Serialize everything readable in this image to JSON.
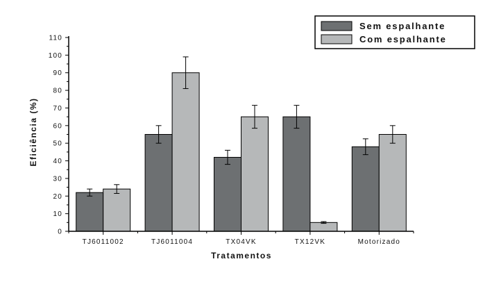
{
  "chart_data": {
    "type": "bar",
    "title": "",
    "xlabel": "Tratamentos",
    "ylabel": "Eficiência (%)",
    "ylim": [
      0,
      110
    ],
    "yticks": [
      0,
      10,
      20,
      30,
      40,
      50,
      60,
      70,
      80,
      90,
      100,
      110
    ],
    "categories": [
      "TJ6011002",
      "TJ6011004",
      "TX04VK",
      "TX12VK",
      "Motorizado"
    ],
    "series": [
      {
        "name": "Sem espalhante",
        "color": "#6d7072",
        "values": [
          22,
          55,
          42,
          65,
          48
        ],
        "errors": [
          2,
          5,
          4,
          6.5,
          4.5
        ]
      },
      {
        "name": "Com espalhante",
        "color": "#b6b8b9",
        "values": [
          24,
          90,
          65,
          5,
          55
        ],
        "errors": [
          2.5,
          9,
          6.5,
          0.5,
          5
        ]
      }
    ],
    "legend": "top-right",
    "grid": false
  }
}
